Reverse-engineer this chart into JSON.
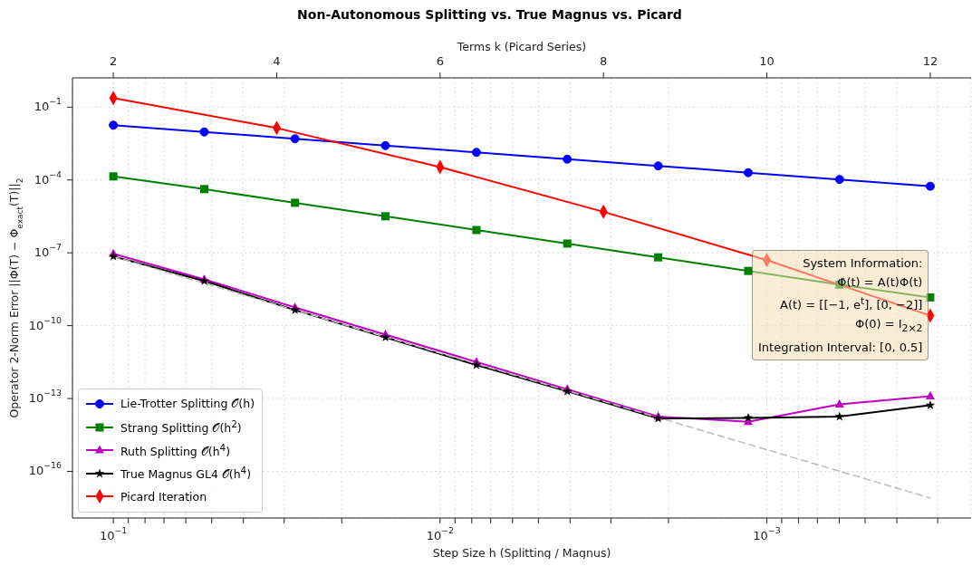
{
  "chart_data": {
    "type": "line",
    "title": "Non-Autonomous Splitting vs. True Magnus vs. Picard",
    "xlabel": "Step Size h (Splitting / Magnus)",
    "x2label": "Terms k (Picard Series)",
    "ylabel": "Operator 2-Norm Error ||Φ(T) − Φ$_{exact}$(T)||$_{2}$",
    "log": "xy",
    "grid": true,
    "legend": "bottom left",
    "line_style": "solid",
    "xlim": [
      0.1334,
      0.000237
    ],
    "xticks": [
      {
        "value": 0.1,
        "label": "10$^{−1}$"
      },
      {
        "value": 0.09,
        "label": null
      },
      {
        "value": 0.08,
        "label": null
      },
      {
        "value": 0.07,
        "label": null
      },
      {
        "value": 0.06,
        "label": null
      },
      {
        "value": 0.05,
        "label": null
      },
      {
        "value": 0.04,
        "label": null
      },
      {
        "value": 0.03,
        "label": null
      },
      {
        "value": 0.02,
        "label": null
      },
      {
        "value": 0.01,
        "label": "10$^{−2}$"
      },
      {
        "value": 0.009,
        "label": null
      },
      {
        "value": 0.008,
        "label": null
      },
      {
        "value": 0.007,
        "label": null
      },
      {
        "value": 0.006,
        "label": null
      },
      {
        "value": 0.005,
        "label": null
      },
      {
        "value": 0.004,
        "label": null
      },
      {
        "value": 0.003,
        "label": null
      },
      {
        "value": 0.002,
        "label": null
      },
      {
        "value": 0.001,
        "label": "10$^{−3}$"
      },
      {
        "value": 0.0009,
        "label": null
      },
      {
        "value": 0.0008,
        "label": null
      },
      {
        "value": 0.0007,
        "label": null
      },
      {
        "value": 0.0006,
        "label": null
      },
      {
        "value": 0.0005,
        "label": null
      },
      {
        "value": 0.0004,
        "label": null
      },
      {
        "value": 0.0003,
        "label": null
      }
    ],
    "x2lim": [
      1.5,
      12.5
    ],
    "x2ticks": [
      2,
      4,
      6,
      8,
      10,
      12
    ],
    "ylim": [
      1.2e-18,
      1.6
    ],
    "yticks": [
      {
        "value": 0.1,
        "label": "10$^{−1}$"
      },
      {
        "value": 0.0001,
        "label": "10$^{−4}$"
      },
      {
        "value": 1e-07,
        "label": "10$^{−7}$"
      },
      {
        "value": 1e-10,
        "label": "10$^{−10}$"
      },
      {
        "value": 1e-13,
        "label": "10$^{−13}$"
      },
      {
        "value": 1e-16,
        "label": "10$^{−16}$"
      }
    ],
    "annotations": [
      "System Information:",
      "Φ̇(t) = A(t)Φ(t)",
      "A(t) = [[−1,  e$^{t}$],  [0,  −2]]",
      "Φ(0) = I$_{2×2}$",
      "Integration Interval: [0, 0.5]"
    ],
    "series": [
      {
        "name": "Lie-Trotter Splitting 𝒪(h)",
        "color": "#0000ff",
        "marker": "circle",
        "x": [
          0.1,
          0.0527,
          0.0278,
          0.0147,
          0.00774,
          0.00408,
          0.00215,
          0.00114,
          0.000599,
          0.000316
        ],
        "values": [
          0.018,
          0.0095,
          0.005,
          0.0026,
          0.00137,
          0.00072,
          0.00038,
          0.0002,
          0.000105,
          5.5e-05
        ]
      },
      {
        "name": "Strang Splitting 𝒪(h$^{2}$)",
        "color": "#008000",
        "marker": "square",
        "x": [
          0.1,
          0.0527,
          0.0278,
          0.0147,
          0.00774,
          0.00408,
          0.00215,
          0.00114,
          0.000599,
          0.000316
        ],
        "values": [
          0.00014,
          4.2e-05,
          1.15e-05,
          3.2e-06,
          8.7e-07,
          2.4e-07,
          6.5e-08,
          1.8e-08,
          4.9e-09,
          1.45e-09
        ]
      },
      {
        "name": "Ruth Splitting 𝒪(h$^{4}$)",
        "color": "#bf00bf",
        "marker": "triangle",
        "x": [
          0.1,
          0.0527,
          0.0278,
          0.0147,
          0.00774,
          0.00408,
          0.00215,
          0.00114,
          0.000599,
          0.000316
        ],
        "values": [
          9.1e-08,
          8.1e-09,
          5.6e-10,
          4.3e-11,
          3.2e-12,
          2.4e-13,
          1.8e-14,
          1.1e-14,
          5.7e-14,
          1.25e-13
        ]
      },
      {
        "name": "True Magnus GL4 𝒪(h$^{4}$)",
        "color": "#000000",
        "marker": "star",
        "x": [
          0.1,
          0.0527,
          0.0278,
          0.0147,
          0.00774,
          0.00408,
          0.00215,
          0.00114,
          0.000599,
          0.000316
        ],
        "values": [
          7.1e-08,
          6.9e-09,
          4.4e-10,
          3.3e-11,
          2.4e-12,
          2e-13,
          1.5e-14,
          1.6e-14,
          1.8e-14,
          5.3e-14
        ]
      },
      {
        "color": "#bbbbbb",
        "marker": "none",
        "line_style": "dashed",
        "x": [
          0.1,
          0.000316
        ],
        "values": [
          7.1e-08,
          8e-18
        ]
      },
      {
        "name": "Picard Iteration",
        "color": "#ff0000",
        "marker": "diamond",
        "axis": "x2",
        "x": [
          2,
          4,
          6,
          8,
          10,
          12
        ],
        "values": [
          0.237,
          0.0138,
          0.00034,
          4.9e-06,
          5e-08,
          2.6e-10
        ]
      }
    ]
  }
}
